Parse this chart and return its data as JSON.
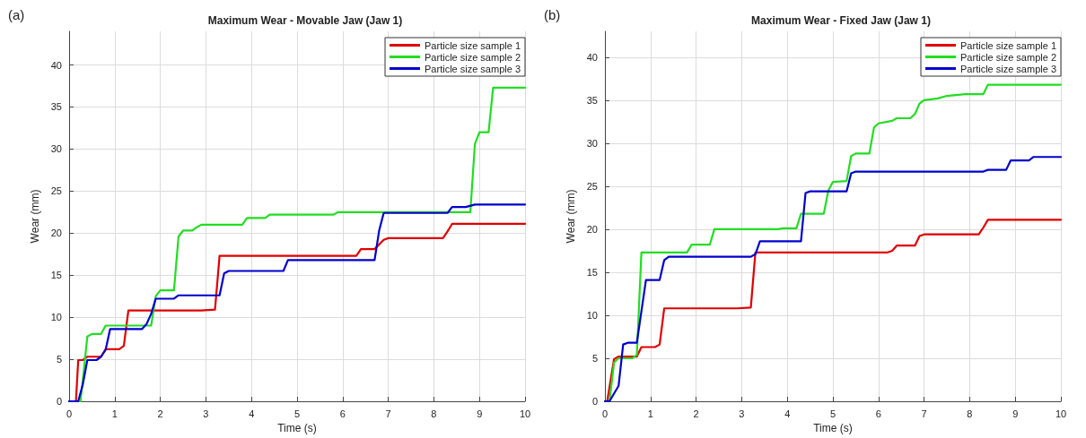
{
  "chart_data": [
    {
      "type": "line",
      "title": "Maximum Wear - Movable Jaw (Jaw 1)",
      "xlabel": "Time (s)",
      "ylabel": "Wear (mm)",
      "annotations": [
        "(a)"
      ],
      "xlim": [
        0,
        10
      ],
      "xticks": [
        0,
        1,
        2,
        3,
        4,
        5,
        6,
        7,
        8,
        9,
        10
      ],
      "ylim": [
        0,
        44
      ],
      "yticks": [
        0,
        5,
        10,
        15,
        20,
        25,
        30,
        35,
        40
      ],
      "grid": true,
      "legend": "top right",
      "line_style": "solid",
      "series": [
        {
          "name": "Particle size sample 1",
          "color": "#e00000",
          "x": [
            0,
            0.15,
            0.2,
            0.3,
            0.4,
            0.7,
            0.8,
            1.1,
            1.2,
            1.3,
            2.9,
            3.2,
            3.3,
            6.3,
            6.4,
            6.7,
            6.9,
            7.0,
            8.2,
            8.3,
            8.4,
            10
          ],
          "values": [
            0,
            0,
            4.9,
            4.9,
            5.3,
            5.3,
            6.2,
            6.2,
            6.6,
            10.8,
            10.8,
            10.9,
            17.3,
            17.3,
            18.1,
            18.1,
            19.2,
            19.4,
            19.4,
            20.2,
            21.1,
            21.1
          ]
        },
        {
          "name": "Particle size sample 2",
          "color": "#22dd22",
          "x": [
            0,
            0.25,
            0.3,
            0.4,
            0.5,
            0.7,
            0.8,
            1.8,
            1.9,
            2.0,
            2.3,
            2.4,
            2.5,
            2.7,
            2.8,
            2.9,
            3.8,
            3.9,
            4.3,
            4.4,
            5.8,
            5.9,
            8.8,
            8.9,
            9.0,
            9.2,
            9.3,
            10
          ],
          "values": [
            0,
            0,
            2.5,
            7.7,
            8,
            8,
            9,
            9,
            12.5,
            13.2,
            13.2,
            19.6,
            20.3,
            20.3,
            20.7,
            21,
            21,
            21.8,
            21.8,
            22.2,
            22.2,
            22.5,
            22.5,
            30.6,
            32,
            32,
            37.3,
            37.3
          ]
        },
        {
          "name": "Particle size sample 3",
          "color": "#0000cc",
          "x": [
            0,
            0.2,
            0.3,
            0.4,
            0.6,
            0.7,
            0.8,
            0.9,
            1.6,
            1.7,
            1.8,
            1.9,
            2.3,
            2.4,
            3.3,
            3.4,
            3.5,
            4.7,
            4.8,
            6.7,
            6.8,
            6.9,
            8.3,
            8.4,
            8.7,
            8.9,
            10
          ],
          "values": [
            0,
            0,
            2,
            4.9,
            4.9,
            5.3,
            6.1,
            8.6,
            8.6,
            9.2,
            10.4,
            12.2,
            12.2,
            12.6,
            12.6,
            15.2,
            15.5,
            15.5,
            16.8,
            16.8,
            20.3,
            22.4,
            22.4,
            23.1,
            23.1,
            23.4,
            23.4
          ]
        }
      ]
    },
    {
      "type": "line",
      "title": "Maximum Wear - Fixed Jaw (Jaw 1)",
      "xlabel": "Time (s)",
      "ylabel": "Wear (mm)",
      "annotations": [
        "(b)"
      ],
      "xlim": [
        0,
        10
      ],
      "xticks": [
        0,
        1,
        2,
        3,
        4,
        5,
        6,
        7,
        8,
        9,
        10
      ],
      "ylim": [
        0,
        43
      ],
      "yticks": [
        0,
        5,
        10,
        15,
        20,
        25,
        30,
        35,
        40
      ],
      "grid": true,
      "legend": "top right",
      "line_style": "solid",
      "series": [
        {
          "name": "Particle size sample 1",
          "color": "#e00000",
          "x": [
            0,
            0.05,
            0.2,
            0.3,
            0.7,
            0.8,
            1.1,
            1.2,
            1.3,
            2.9,
            3.2,
            3.3,
            6.2,
            6.3,
            6.4,
            6.8,
            6.9,
            7.0,
            8.2,
            8.3,
            8.4,
            10
          ],
          "values": [
            0,
            0,
            4.9,
            5.2,
            5.2,
            6.3,
            6.3,
            6.6,
            10.8,
            10.8,
            10.9,
            17.3,
            17.3,
            17.5,
            18.1,
            18.1,
            19.2,
            19.4,
            19.4,
            20.2,
            21.1,
            21.1
          ]
        },
        {
          "name": "Particle size sample 2",
          "color": "#22dd22",
          "x": [
            0,
            0.1,
            0.2,
            0.3,
            0.6,
            0.7,
            0.8,
            1.8,
            1.9,
            2.3,
            2.4,
            3.8,
            3.9,
            4.2,
            4.3,
            4.8,
            4.9,
            5.0,
            5.3,
            5.4,
            5.5,
            5.8,
            5.9,
            6.0,
            6.3,
            6.4,
            6.7,
            6.8,
            6.9,
            7.0,
            7.3,
            7.5,
            7.9,
            8.3,
            8.4,
            10
          ],
          "values": [
            0,
            0,
            4.5,
            5,
            5,
            5.4,
            17.3,
            17.3,
            18.2,
            18.2,
            20,
            20,
            20.1,
            20.1,
            21.8,
            21.8,
            24.5,
            25.5,
            25.6,
            28.5,
            28.8,
            28.8,
            31.8,
            32.3,
            32.6,
            32.9,
            32.9,
            33.4,
            34.6,
            35,
            35.2,
            35.5,
            35.7,
            35.7,
            36.8,
            36.8
          ]
        },
        {
          "name": "Particle size sample 3",
          "color": "#0000cc",
          "x": [
            0,
            0.1,
            0.3,
            0.4,
            0.5,
            0.7,
            0.9,
            1.2,
            1.3,
            1.4,
            3.2,
            3.3,
            3.4,
            4.3,
            4.4,
            4.5,
            5.3,
            5.4,
            5.5,
            8.3,
            8.4,
            8.8,
            8.9,
            9.3,
            9.4,
            10
          ],
          "values": [
            0,
            0,
            1.8,
            6.6,
            6.8,
            6.8,
            14.1,
            14.1,
            16.4,
            16.8,
            16.8,
            17.1,
            18.6,
            18.6,
            24.2,
            24.4,
            24.4,
            26.5,
            26.7,
            26.7,
            26.9,
            26.9,
            28,
            28,
            28.4,
            28.4
          ]
        }
      ]
    }
  ]
}
